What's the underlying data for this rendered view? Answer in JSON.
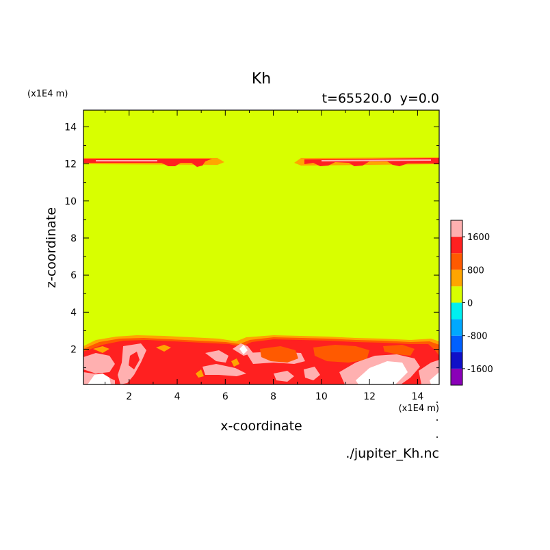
{
  "chart_data": {
    "type": "heatmap",
    "title": "Kh",
    "subtitle": "t=65520.0  y=0.0",
    "xlabel": "x-coordinate",
    "ylabel": "z-coordinate",
    "x_unit": "(x1E4 m)",
    "y_unit": "(x1E4 m)",
    "xlim": [
      0.1,
      14.9
    ],
    "ylim": [
      0.1,
      14.9
    ],
    "xticks": [
      2,
      4,
      6,
      8,
      10,
      12,
      14
    ],
    "yticks": [
      2,
      4,
      6,
      8,
      10,
      12,
      14
    ],
    "colorbar": {
      "levels": [
        -2000,
        -1600,
        -1200,
        -800,
        -400,
        0,
        400,
        800,
        1200,
        1600,
        2000
      ],
      "tick_labels": [
        "1600",
        "800",
        "0",
        "-800",
        "-1600"
      ],
      "tick_values": [
        1600,
        800,
        0,
        -800,
        -1600
      ],
      "colors": [
        "#8a00b8",
        "#1010c8",
        "#0060ff",
        "#00a8ff",
        "#00f0f0",
        "#d8ff00",
        "#ffa500",
        "#ff5a00",
        "#ff2020",
        "#ffb0b0"
      ]
    },
    "background_value_range": [
      0,
      400
    ],
    "features": [
      "Thin band of Kh 400-2000 near z=12.2 for x 0.1-6.5 and x 8.9-14.9",
      "Turbulent boundary layer with Kh 400->2000 from z=0.1 to about z=2.6 across all x"
    ]
  },
  "footer": {
    "source": "./jupiter_Kh.nc"
  },
  "colors": {
    "background_field": "#d8ff00",
    "band_red": "#ff2020",
    "band_orange": "#ff5a00",
    "band_pink": "#ffb0b0",
    "band_white": "#ffffff"
  }
}
